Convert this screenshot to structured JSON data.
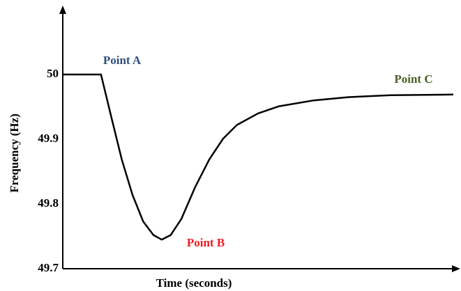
{
  "chart_data": {
    "type": "line",
    "xlabel": "Time (seconds)",
    "ylabel": "Frequency (Hz)",
    "x": [
      0,
      9.7,
      12.4,
      15.0,
      17.7,
      20.4,
      23.0,
      25.1,
      27.4,
      30.1,
      33.6,
      37.2,
      40.7,
      44.2,
      49.6,
      54.9,
      63.7,
      72.6,
      83.2,
      99.1
    ],
    "values": [
      50,
      50,
      49.932,
      49.868,
      49.814,
      49.773,
      49.752,
      49.745,
      49.752,
      49.777,
      49.826,
      49.869,
      49.901,
      49.922,
      49.94,
      49.951,
      49.96,
      49.965,
      49.968,
      49.969
    ],
    "color": "#000000",
    "xlim": [
      0,
      100
    ],
    "ylim": [
      49.7,
      50.1
    ],
    "yticks": [
      49.7,
      49.8,
      49.9,
      50
    ],
    "grid": false,
    "annotations": [
      {
        "text": "Point A",
        "color": "#2f4f7f"
      },
      {
        "text": "Point B",
        "color": "#ee1c24"
      },
      {
        "text": "Point C",
        "color": "#4b5f22"
      }
    ]
  }
}
